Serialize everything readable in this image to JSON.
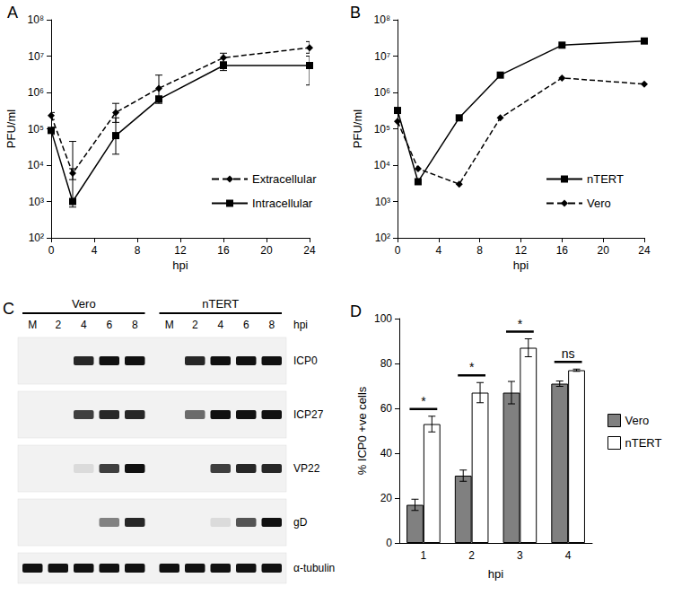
{
  "chart_data": [
    {
      "panel": "A",
      "type": "line",
      "log": "y",
      "grid": false,
      "legend": "lower right",
      "x_label": "hpi",
      "y_label": "PFU/ml",
      "x": [
        0,
        2,
        6,
        10,
        16,
        24
      ],
      "xlim": [
        0,
        24
      ],
      "xticks": [
        0,
        4,
        8,
        12,
        16,
        20,
        24
      ],
      "ylim": [
        100,
        100000000
      ],
      "yticks": [
        {
          "value": 100,
          "label": "10²"
        },
        {
          "value": 1000,
          "label": "10³"
        },
        {
          "value": 10000,
          "label": "10⁴"
        },
        {
          "value": 100000,
          "label": "10⁵"
        },
        {
          "value": 1000000,
          "label": "10⁶"
        },
        {
          "value": 10000000,
          "label": "10⁷"
        },
        {
          "value": 100000000,
          "label": "10⁸"
        }
      ],
      "series": [
        {
          "name": "Extracellular",
          "color": "#000000",
          "line_style": "dashed",
          "marker": "diamond",
          "values": [
            230000,
            6000,
            280000,
            1300000,
            9000000,
            17000000
          ],
          "error_bars": [
            [
              180000,
              280000
            ],
            [
              4000,
              8000
            ],
            [
              150000,
              500000
            ],
            [
              600000,
              3000000
            ],
            [
              6500000,
              12000000
            ],
            [
              12000000,
              25000000
            ]
          ]
        },
        {
          "name": "Intracellular",
          "color": "#000000",
          "line_style": "solid",
          "marker": "square",
          "values": [
            90000,
            1000,
            65000,
            650000,
            5500000,
            5500000
          ],
          "error_bars": [
            [
              70000,
              110000
            ],
            [
              700,
              45000
            ],
            [
              20000,
              200000
            ],
            [
              500000,
              800000
            ],
            [
              4000000,
              7000000
            ],
            [
              1600000,
              10000000
            ]
          ]
        }
      ]
    },
    {
      "panel": "B",
      "type": "line",
      "log": "y",
      "grid": false,
      "legend": "lower right",
      "x_label": "hpi",
      "y_label": "PFU/ml",
      "x": [
        0,
        2,
        6,
        10,
        16,
        24
      ],
      "xlim": [
        0,
        24
      ],
      "xticks": [
        0,
        4,
        8,
        12,
        16,
        20,
        24
      ],
      "ylim": [
        100,
        100000000
      ],
      "yticks": [
        {
          "value": 100,
          "label": "10²"
        },
        {
          "value": 1000,
          "label": "10³"
        },
        {
          "value": 10000,
          "label": "10⁴"
        },
        {
          "value": 100000,
          "label": "10⁵"
        },
        {
          "value": 1000000,
          "label": "10⁶"
        },
        {
          "value": 10000000,
          "label": "10⁷"
        },
        {
          "value": 100000000,
          "label": "10⁸"
        }
      ],
      "series": [
        {
          "name": "nTERT",
          "color": "#000000",
          "line_style": "solid",
          "marker": "square",
          "values": [
            320000,
            3500,
            200000,
            3000000,
            20000000,
            26000000
          ]
        },
        {
          "name": "Vero",
          "color": "#000000",
          "line_style": "dashed",
          "marker": "diamond",
          "values": [
            160000,
            8000,
            3000,
            200000,
            2500000,
            1700000
          ]
        }
      ]
    },
    {
      "panel": "C",
      "type": "western_blot",
      "x_label": "hpi",
      "groups": [
        {
          "name": "Vero",
          "lanes": [
            "M",
            2,
            4,
            6,
            8
          ]
        },
        {
          "name": "nTERT",
          "lanes": [
            "M",
            2,
            4,
            6,
            8
          ]
        }
      ],
      "rows": [
        {
          "name": "ICP0",
          "band_intensity": [
            0,
            0,
            0.9,
            1,
            1,
            0,
            0.9,
            1,
            1,
            1
          ]
        },
        {
          "name": "ICP27",
          "band_intensity": [
            0,
            0,
            0.8,
            0.9,
            0.9,
            0,
            0.6,
            1,
            1,
            1
          ]
        },
        {
          "name": "VP22",
          "band_intensity": [
            0,
            0,
            0.1,
            0.8,
            1,
            0,
            0,
            0.8,
            0.9,
            0.9
          ]
        },
        {
          "name": "gD",
          "band_intensity": [
            0,
            0,
            0,
            0.5,
            0.9,
            0,
            0,
            0.1,
            0.7,
            1
          ]
        },
        {
          "name": "α-tubulin",
          "band_intensity": [
            1,
            1,
            1,
            1,
            1,
            1,
            1,
            1,
            1,
            1
          ]
        }
      ]
    },
    {
      "panel": "D",
      "type": "bar",
      "grid": false,
      "legend": "right",
      "x_label": "hpi",
      "y_label": "% ICP0 +ve cells",
      "categories": [
        1,
        2,
        3,
        4
      ],
      "ylim": [
        0,
        100
      ],
      "yticks": [
        0,
        20,
        40,
        60,
        80,
        100
      ],
      "series": [
        {
          "name": "Vero",
          "color": "#808080",
          "values": [
            17,
            30,
            67,
            71
          ],
          "errors": [
            2.5,
            2.5,
            5,
            1.2
          ]
        },
        {
          "name": "nTERT",
          "color": "#ffffff",
          "values": [
            53,
            67,
            87,
            77
          ],
          "errors": [
            3.5,
            4.5,
            4,
            0.5
          ]
        }
      ],
      "significance": [
        "*",
        "*",
        "*",
        "ns"
      ]
    }
  ]
}
